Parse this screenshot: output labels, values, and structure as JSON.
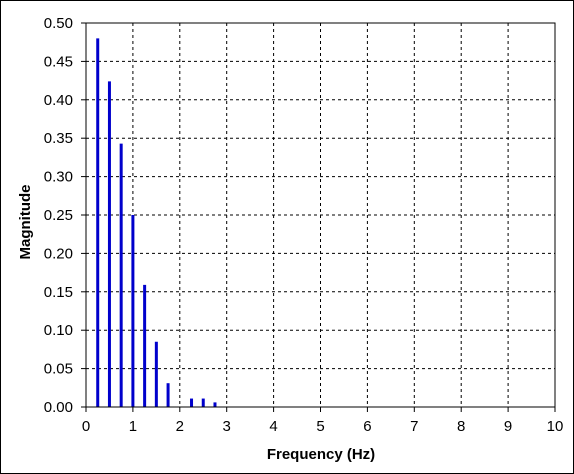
{
  "chart_data": {
    "type": "bar",
    "style": "stem",
    "xlabel": "Frequency  (Hz)",
    "ylabel": "Magnitude",
    "xlim": [
      0,
      10
    ],
    "ylim": [
      0,
      0.5
    ],
    "x_ticks": [
      "0",
      "1",
      "2",
      "3",
      "4",
      "5",
      "6",
      "7",
      "8",
      "9",
      "10"
    ],
    "y_ticks": [
      "0.00",
      "0.05",
      "0.10",
      "0.15",
      "0.20",
      "0.25",
      "0.30",
      "0.35",
      "0.40",
      "0.45",
      "0.50"
    ],
    "grid": true,
    "series": [
      {
        "color": "#0000cc",
        "x": [
          0.25,
          0.5,
          0.75,
          1.0,
          1.25,
          1.5,
          1.75,
          2.25,
          2.5,
          2.75
        ],
        "values": [
          0.48,
          0.424,
          0.343,
          0.25,
          0.159,
          0.085,
          0.031,
          0.011,
          0.011,
          0.006
        ]
      }
    ]
  }
}
